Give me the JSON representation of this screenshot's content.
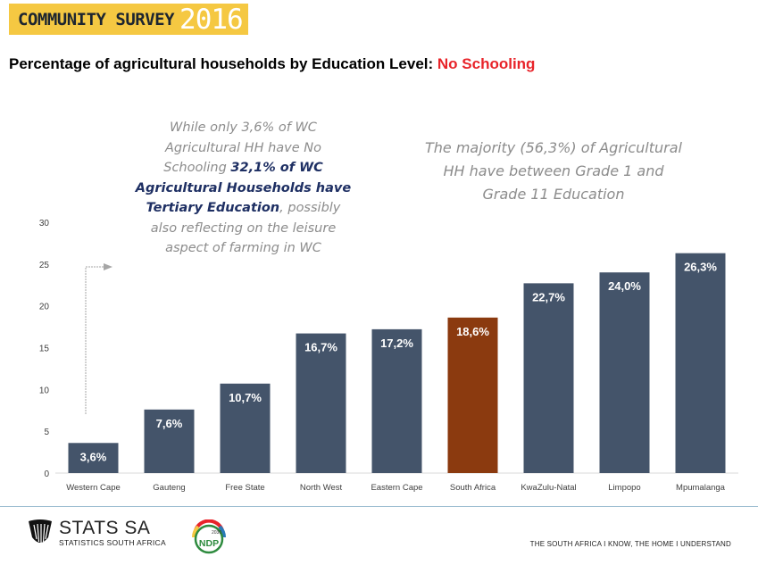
{
  "banner": {
    "label": "COMMUNITY SURVEY",
    "year": "2016"
  },
  "subtitle": {
    "text": "Percentage of agricultural households by Education Level: ",
    "highlight": "No Schooling"
  },
  "annotations": {
    "left": {
      "part1": "While only 3,6% of WC Agricultural HH have No Schooling ",
      "bold": "32,1% of WC Agricultural Households have Tertiary Education",
      "part2": ", possibly also reflecting on the leisure aspect of farming in WC"
    },
    "right": "The majority (56,3%) of Agricultural HH have between Grade 1 and Grade 11 Education"
  },
  "chart_data": {
    "type": "bar",
    "categories": [
      "Western Cape",
      "Gauteng",
      "Free State",
      "North West",
      "Eastern Cape",
      "South Africa",
      "KwaZulu-Natal",
      "Limpopo",
      "Mpumalanga"
    ],
    "values": [
      3.6,
      7.6,
      10.7,
      16.7,
      17.2,
      18.6,
      22.7,
      24.0,
      26.3
    ],
    "data_labels": [
      "3,6%",
      "7,6%",
      "10,7%",
      "16,7%",
      "17,2%",
      "18,6%",
      "22,7%",
      "24,0%",
      "26,3%"
    ],
    "yticks": [
      "0",
      "5",
      "10",
      "15",
      "20",
      "25",
      "30"
    ],
    "ylim": [
      0,
      30
    ],
    "bar_color": "#44546a",
    "highlight_color": "#8b3a0f",
    "highlight_category": "South Africa",
    "grid": false,
    "title": "",
    "xlabel": "",
    "ylabel": ""
  },
  "footer": {
    "logo_main": "STATS SA",
    "logo_sub": "STATISTICS SOUTH AFRICA",
    "ndp_year": "2030",
    "ndp": "NDP",
    "tagline": "THE SOUTH AFRICA I KNOW, THE HOME I UNDERSTAND"
  }
}
